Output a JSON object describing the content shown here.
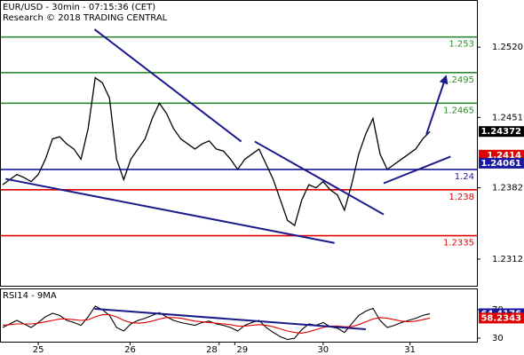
{
  "chart_data": [
    {
      "type": "line",
      "title": "EUR/USD - 30min - 07:15:36 (CET)",
      "subtitle": "Research © 2018 TRADING CENTRAL",
      "x": [
        0,
        1,
        2,
        3,
        4,
        5,
        6,
        7,
        8,
        9,
        10,
        11,
        12,
        13,
        14,
        15,
        16,
        17,
        18,
        19,
        20,
        21,
        22,
        23,
        24,
        25,
        26,
        27,
        28,
        29,
        30,
        31,
        32,
        33,
        34,
        35,
        36,
        37,
        38,
        39,
        40,
        41,
        42,
        43,
        44,
        45,
        46,
        47,
        48,
        49,
        50,
        51,
        52,
        53,
        54,
        55,
        56,
        57,
        58,
        59,
        60
      ],
      "series": [
        {
          "color": "#000000",
          "values": [
            1.2385,
            1.239,
            1.2395,
            1.2392,
            1.2388,
            1.2395,
            1.241,
            1.243,
            1.2432,
            1.2425,
            1.242,
            1.241,
            1.244,
            1.249,
            1.2485,
            1.247,
            1.241,
            1.239,
            1.241,
            1.242,
            1.243,
            1.245,
            1.2465,
            1.2455,
            1.244,
            1.243,
            1.2425,
            1.242,
            1.2425,
            1.2428,
            1.242,
            1.2418,
            1.241,
            1.24,
            1.241,
            1.2415,
            1.242,
            1.2405,
            1.239,
            1.237,
            1.235,
            1.2345,
            1.237,
            1.2385,
            1.2382,
            1.2388,
            1.238,
            1.2375,
            1.236,
            1.2385,
            1.2415,
            1.2435,
            1.245,
            1.2415,
            1.24,
            1.2405,
            1.241,
            1.2415,
            1.242,
            1.243,
            1.24372
          ]
        }
      ],
      "xlim": [
        -0.25,
        66.6
      ],
      "ylim": [
        1.22858,
        1.25654
      ],
      "yticks": [
        {
          "value": 1.252,
          "label": "1.2520"
        },
        1.2451,
        1.2382,
        1.2312
      ],
      "levels": [
        {
          "value": 1.253,
          "color": "#2e8b2e"
        },
        {
          "value": 1.2495,
          "color": "#2e8b2e"
        },
        {
          "value": 1.2465,
          "color": "#2e8b2e"
        },
        {
          "value": 1.24,
          "color": "#1a1aa0"
        },
        {
          "value": 1.238,
          "color": "#e00000"
        },
        {
          "value": 1.2335,
          "color": "#e00000"
        }
      ],
      "price_tags": [
        {
          "value": 1.24372,
          "color": "#000000"
        },
        {
          "value": 1.2414,
          "color": "#e00000"
        },
        {
          "value": 1.24061,
          "color": "#1a1aa0"
        }
      ],
      "trendlines": [
        {
          "color": "#1a1a8a",
          "x": [
            12.9,
            33.5
          ],
          "y": [
            1.25375,
            1.24274
          ]
        },
        {
          "color": "#1a1a8a",
          "x": [
            0.4,
            46.6
          ],
          "y": [
            1.23907,
            1.23278
          ]
        },
        {
          "color": "#1a1a8a",
          "x": [
            35.4,
            53.5
          ],
          "y": [
            1.24274,
            1.23558
          ]
        },
        {
          "color": "#1a1a8a",
          "x": [
            53.5,
            62.9
          ],
          "y": [
            1.23864,
            1.24126
          ]
        },
        {
          "color": "#1a1a8a",
          "x": [
            59.5,
            62.25
          ],
          "y": [
            1.24344,
            1.24912
          ],
          "arrow": true
        }
      ]
    },
    {
      "type": "line",
      "title": "RSI14 - 9MA",
      "x": [
        0,
        1,
        2,
        3,
        4,
        5,
        6,
        7,
        8,
        9,
        10,
        11,
        12,
        13,
        14,
        15,
        16,
        17,
        18,
        19,
        20,
        21,
        22,
        23,
        24,
        25,
        26,
        27,
        28,
        29,
        30,
        31,
        32,
        33,
        34,
        35,
        36,
        37,
        38,
        39,
        40,
        41,
        42,
        43,
        44,
        45,
        46,
        47,
        48,
        49,
        50,
        51,
        52,
        53,
        54,
        55,
        56,
        57,
        58,
        59,
        60
      ],
      "series": [
        {
          "color": "#000000",
          "values": [
            45,
            50,
            55,
            50,
            45,
            52,
            60,
            65,
            62,
            55,
            52,
            48,
            60,
            75,
            70,
            62,
            45,
            40,
            50,
            55,
            58,
            62,
            66,
            60,
            55,
            52,
            50,
            48,
            52,
            54,
            50,
            48,
            45,
            40,
            48,
            52,
            55,
            45,
            38,
            32,
            28,
            30,
            42,
            50,
            48,
            52,
            46,
            44,
            38,
            50,
            62,
            68,
            72,
            55,
            45,
            48,
            52,
            55,
            58,
            62,
            64.4176
          ]
        },
        {
          "color": "#e00000",
          "values": [
            48,
            49,
            50,
            50,
            50,
            51,
            53,
            55,
            57,
            57,
            56,
            55,
            56,
            60,
            63,
            63,
            60,
            55,
            52,
            51,
            52,
            54,
            57,
            59,
            59,
            58,
            56,
            54,
            53,
            52,
            51,
            50,
            49,
            47,
            47,
            48,
            49,
            48,
            46,
            43,
            40,
            38,
            37,
            39,
            42,
            45,
            47,
            47,
            46,
            46,
            49,
            53,
            57,
            59,
            58,
            56,
            54,
            53,
            54,
            56,
            58.2343
          ]
        }
      ],
      "xlim": [
        -0.25,
        66.6
      ],
      "ylim": [
        25,
        98.75
      ],
      "yticks": [
        70,
        30
      ],
      "xticks": [
        {
          "value": 5,
          "label": "25"
        },
        {
          "value": 17.9,
          "label": "26"
        },
        {
          "value": 30.4,
          "label": "28"
        },
        {
          "value": 32.6,
          "label": "29"
        },
        {
          "value": 45,
          "label": "30"
        },
        {
          "value": 57.2,
          "label": "31"
        }
      ],
      "price_tags": [
        {
          "value": 64.4176,
          "color": "#1a1aa0"
        },
        {
          "value": 58.2343,
          "color": "#e00000"
        }
      ],
      "trendlines": [
        {
          "color": "#1a1a8a",
          "x": [
            12.9,
            51
          ],
          "y": [
            71.25,
            42.5
          ]
        }
      ]
    }
  ]
}
